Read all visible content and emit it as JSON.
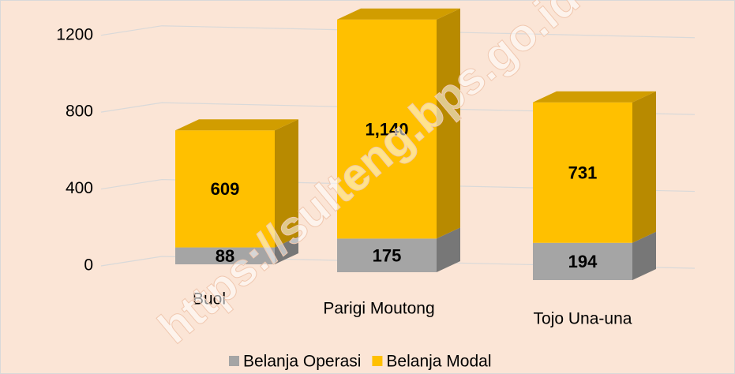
{
  "chart_data": {
    "type": "bar3d_stacked",
    "watermark": "https://sulteng.bps.go.id",
    "categories": [
      "Buol",
      "Parigi Moutong",
      "Tojo Una-una"
    ],
    "series": [
      {
        "name": "Belanja Operasi",
        "color": "#a5a5a5",
        "values": [
          88,
          175,
          194
        ]
      },
      {
        "name": "Belanja Modal",
        "color": "#ffc000",
        "values": [
          609,
          1140,
          731
        ],
        "value_labels": [
          "609",
          "1,140",
          "731"
        ]
      }
    ],
    "ylim": [
      0,
      1400
    ],
    "yticks": [
      0,
      400,
      800,
      1200
    ],
    "grid": true,
    "legend": "bottom"
  }
}
